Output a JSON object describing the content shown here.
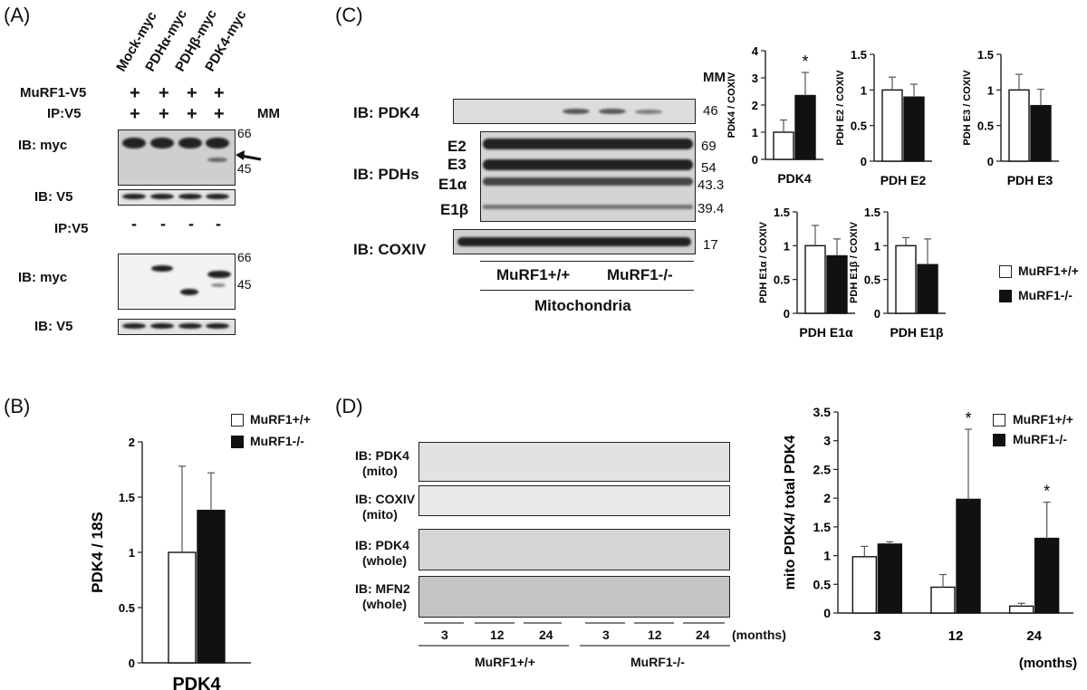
{
  "panels": {
    "a": "(A)",
    "b": "(B)",
    "c": "(C)",
    "d": "(D)"
  },
  "panel_a": {
    "lanes": [
      "Mock-myc",
      "PDHα-myc",
      "PDHβ-myc",
      "PDK4-myc"
    ],
    "row1_label": "MuRF1-V5",
    "row2_label": "IP:V5",
    "plus": "+",
    "minus": "-",
    "mm": "MM",
    "ib_myc": "IB: myc",
    "ib_v5": "IB: V5",
    "ipv5": "IP:V5",
    "mw_66": "66",
    "mw_45": "45"
  },
  "panel_c_blot": {
    "mm": "MM",
    "ib_pdk4": "IB: PDK4",
    "ib_pdhs": "IB: PDHs",
    "ib_coxiv": "IB: COXIV",
    "e2": "E2",
    "e3": "E3",
    "e1a": "E1α",
    "e1b": "E1β",
    "mw": [
      "46",
      "69",
      "54",
      "43.3",
      "39.4",
      "17"
    ],
    "group1": "MuRF1+/+",
    "group2": "MuRF1-/-",
    "fraction": "Mitochondria"
  },
  "legend": {
    "wt": "MuRF1+/+",
    "ko": "MuRF1-/-"
  },
  "panel_d_blot": {
    "rows": [
      [
        "IB: PDK4",
        "(mito)"
      ],
      [
        "IB: COXIV",
        "(mito)"
      ],
      [
        "IB: PDK4",
        "(whole)"
      ],
      [
        "IB: MFN2",
        "(whole)"
      ]
    ],
    "ages": [
      "3",
      "12",
      "24",
      "3",
      "12",
      "24"
    ],
    "months": "(months)",
    "group1": "MuRF1+/+",
    "group2": "MuRF1-/-"
  },
  "chart_data": [
    {
      "type": "bar",
      "id": "C-PDK4",
      "categories": [
        "PDK4"
      ],
      "xlabel": "PDK4",
      "ylabel": "PDK4 / COXIV",
      "ylim": [
        0,
        4
      ],
      "yticks": [
        "0",
        "1",
        "2",
        "3",
        "4"
      ],
      "series": [
        {
          "name": "MuRF1+/+",
          "values": [
            1.0
          ],
          "err": [
            0.45
          ]
        },
        {
          "name": "MuRF1-/-",
          "values": [
            2.35
          ],
          "err": [
            0.85
          ]
        }
      ],
      "annotations": [
        "*"
      ]
    },
    {
      "type": "bar",
      "id": "C-E2",
      "categories": [
        "PDH E2"
      ],
      "xlabel": "PDH E2",
      "ylabel": "PDH E2 / COXIV",
      "ylim": [
        0,
        1.5
      ],
      "yticks": [
        "0",
        "0.5",
        "1",
        "1.5"
      ],
      "series": [
        {
          "name": "MuRF1+/+",
          "values": [
            1.0
          ],
          "err": [
            0.18
          ]
        },
        {
          "name": "MuRF1-/-",
          "values": [
            0.9
          ],
          "err": [
            0.18
          ]
        }
      ]
    },
    {
      "type": "bar",
      "id": "C-E3",
      "categories": [
        "PDH E3"
      ],
      "xlabel": "PDH E3",
      "ylabel": "PDH E3 / COXIV",
      "ylim": [
        0,
        1.5
      ],
      "yticks": [
        "0",
        "0.5",
        "1",
        "1.5"
      ],
      "series": [
        {
          "name": "MuRF1+/+",
          "values": [
            1.0
          ],
          "err": [
            0.22
          ]
        },
        {
          "name": "MuRF1-/-",
          "values": [
            0.78
          ],
          "err": [
            0.23
          ]
        }
      ]
    },
    {
      "type": "bar",
      "id": "C-E1a",
      "categories": [
        "PDH E1α"
      ],
      "xlabel": "PDH E1α",
      "ylabel": "PDH E1α / COXIV",
      "ylim": [
        0,
        1.5
      ],
      "yticks": [
        "0",
        "0.5",
        "1",
        "1.5"
      ],
      "series": [
        {
          "name": "MuRF1+/+",
          "values": [
            1.0
          ],
          "err": [
            0.3
          ]
        },
        {
          "name": "MuRF1-/-",
          "values": [
            0.85
          ],
          "err": [
            0.25
          ]
        }
      ]
    },
    {
      "type": "bar",
      "id": "C-E1b",
      "categories": [
        "PDH E1β"
      ],
      "xlabel": "PDH E1β",
      "ylabel": "PDH E1β / COXIV",
      "ylim": [
        0,
        1.5
      ],
      "yticks": [
        "0",
        "0.5",
        "1",
        "1.5"
      ],
      "series": [
        {
          "name": "MuRF1+/+",
          "values": [
            1.0
          ],
          "err": [
            0.12
          ]
        },
        {
          "name": "MuRF1-/-",
          "values": [
            0.72
          ],
          "err": [
            0.38
          ]
        }
      ]
    },
    {
      "type": "bar",
      "id": "B",
      "categories": [
        "PDK4"
      ],
      "xlabel": "PDK4",
      "ylabel": "PDK4 / 18S",
      "ylim": [
        0,
        2
      ],
      "yticks": [
        "0",
        "0.5",
        "1",
        "1.5",
        "2"
      ],
      "series": [
        {
          "name": "MuRF1+/+",
          "values": [
            1.0
          ],
          "err": [
            0.78
          ]
        },
        {
          "name": "MuRF1-/-",
          "values": [
            1.38
          ],
          "err": [
            0.34
          ]
        }
      ]
    },
    {
      "type": "bar",
      "id": "D",
      "categories": [
        "3",
        "12",
        "24"
      ],
      "xlabel": "(months)",
      "ylabel": "mito PDK4/ total PDK4",
      "ylim": [
        0,
        3.5
      ],
      "yticks": [
        "0",
        "0.5",
        "1",
        "1.5",
        "2",
        "2.5",
        "3",
        "3.5"
      ],
      "series": [
        {
          "name": "MuRF1+/+",
          "values": [
            0.98,
            0.45,
            0.12
          ],
          "err": [
            0.18,
            0.22,
            0.05
          ]
        },
        {
          "name": "MuRF1-/-",
          "values": [
            1.2,
            1.98,
            1.3
          ],
          "err": [
            0.04,
            1.22,
            0.63
          ]
        }
      ],
      "annotations": [
        "*",
        "*"
      ]
    }
  ]
}
